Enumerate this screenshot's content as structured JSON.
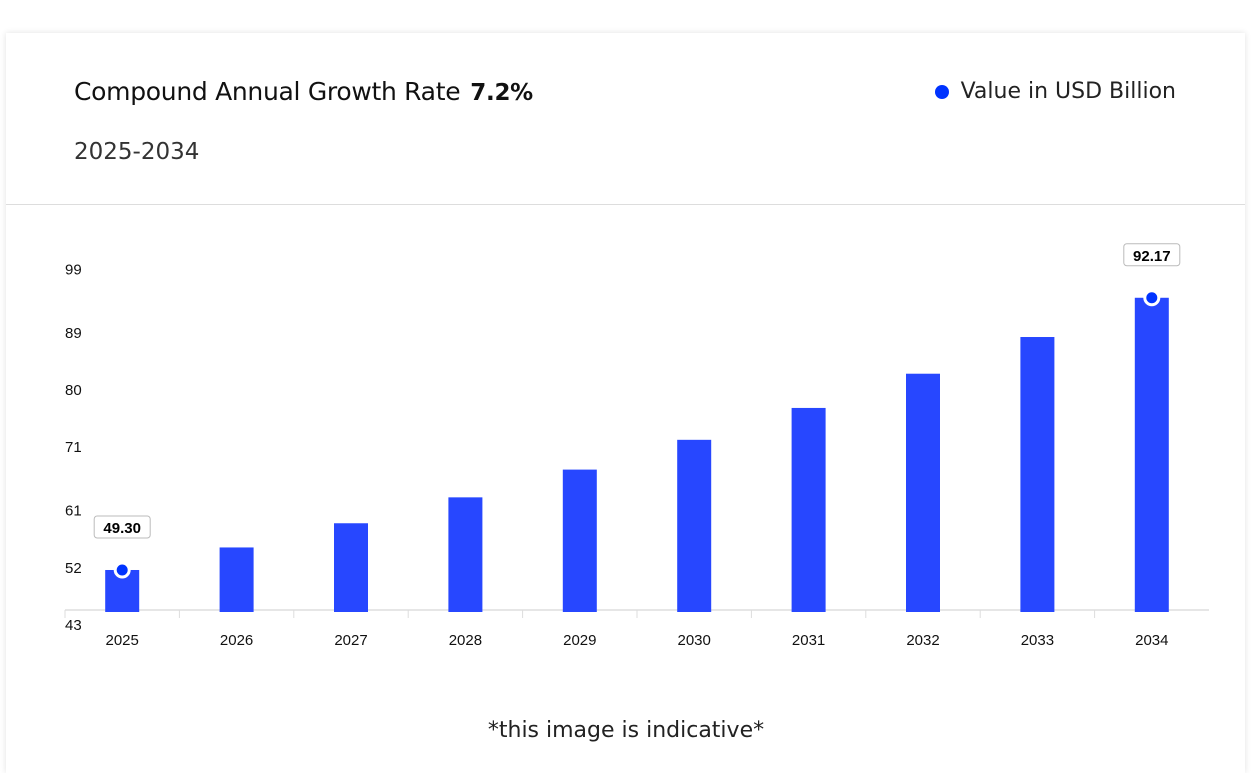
{
  "header": {
    "title": "Compound Annual Growth Rate",
    "cagr": "7.2%",
    "period": "2025-2034",
    "legend_label": "Value in USD Billion"
  },
  "colors": {
    "bar": "#2747FF",
    "marker": "#0033FF"
  },
  "chart_data": {
    "type": "bar",
    "categories": [
      "2025",
      "2026",
      "2027",
      "2028",
      "2029",
      "2030",
      "2031",
      "2032",
      "2033",
      "2034"
    ],
    "series": [
      {
        "name": "Value in USD Billion",
        "values": [
          49.3,
          52.85,
          56.66,
          60.74,
          65.11,
          69.8,
          74.82,
          80.21,
          85.99,
          92.17
        ]
      }
    ],
    "y_ticks": [
      "43",
      "52",
      "61",
      "71",
      "80",
      "89",
      "99"
    ],
    "ylim": [
      43,
      99
    ],
    "annotations": [
      {
        "category": "2025",
        "label": "49.30"
      },
      {
        "category": "2034",
        "label": "92.17"
      }
    ],
    "grid": false,
    "legend": "top-right"
  },
  "footer_note": "*this image is indicative*"
}
